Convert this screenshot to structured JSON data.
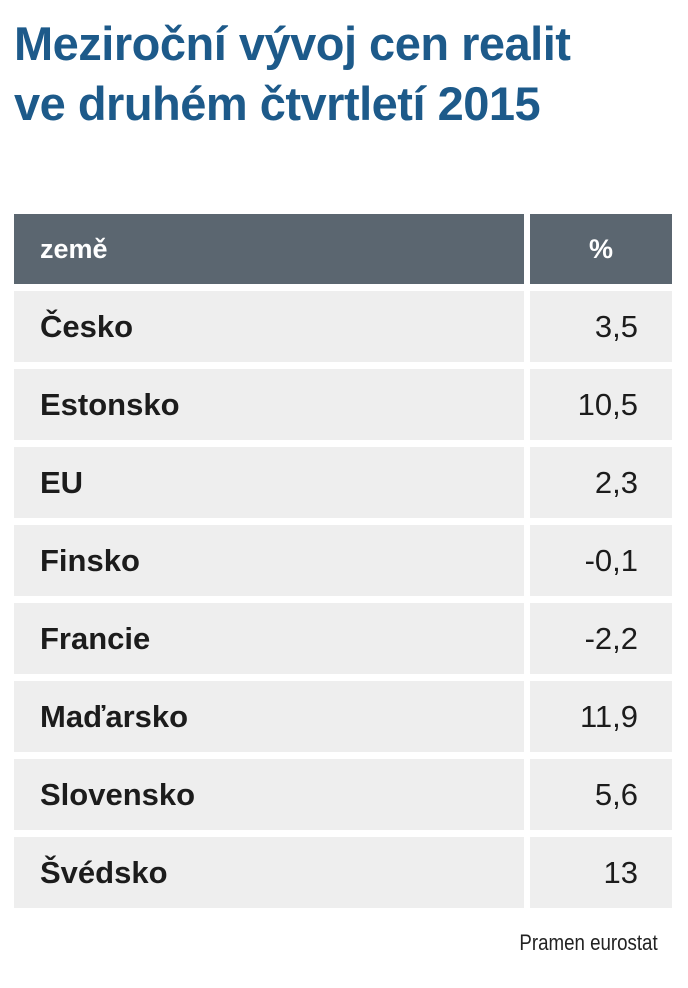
{
  "header": {
    "title": "Meziroční vývoj cen realit ve druhém čtvrtletí 2015"
  },
  "table": {
    "columns": [
      "země",
      "%"
    ],
    "rows": [
      [
        "Česko",
        "3,5"
      ],
      [
        "Estonsko",
        "10,5"
      ],
      [
        "EU",
        "2,3"
      ],
      [
        "Finsko",
        "-0,1"
      ],
      [
        "Francie",
        "-2,2"
      ],
      [
        "Maďarsko",
        "11,9"
      ],
      [
        "Slovensko",
        "5,6"
      ],
      [
        "Švédsko",
        "13"
      ]
    ]
  },
  "footer": {
    "source": "Pramen eurostat"
  }
}
